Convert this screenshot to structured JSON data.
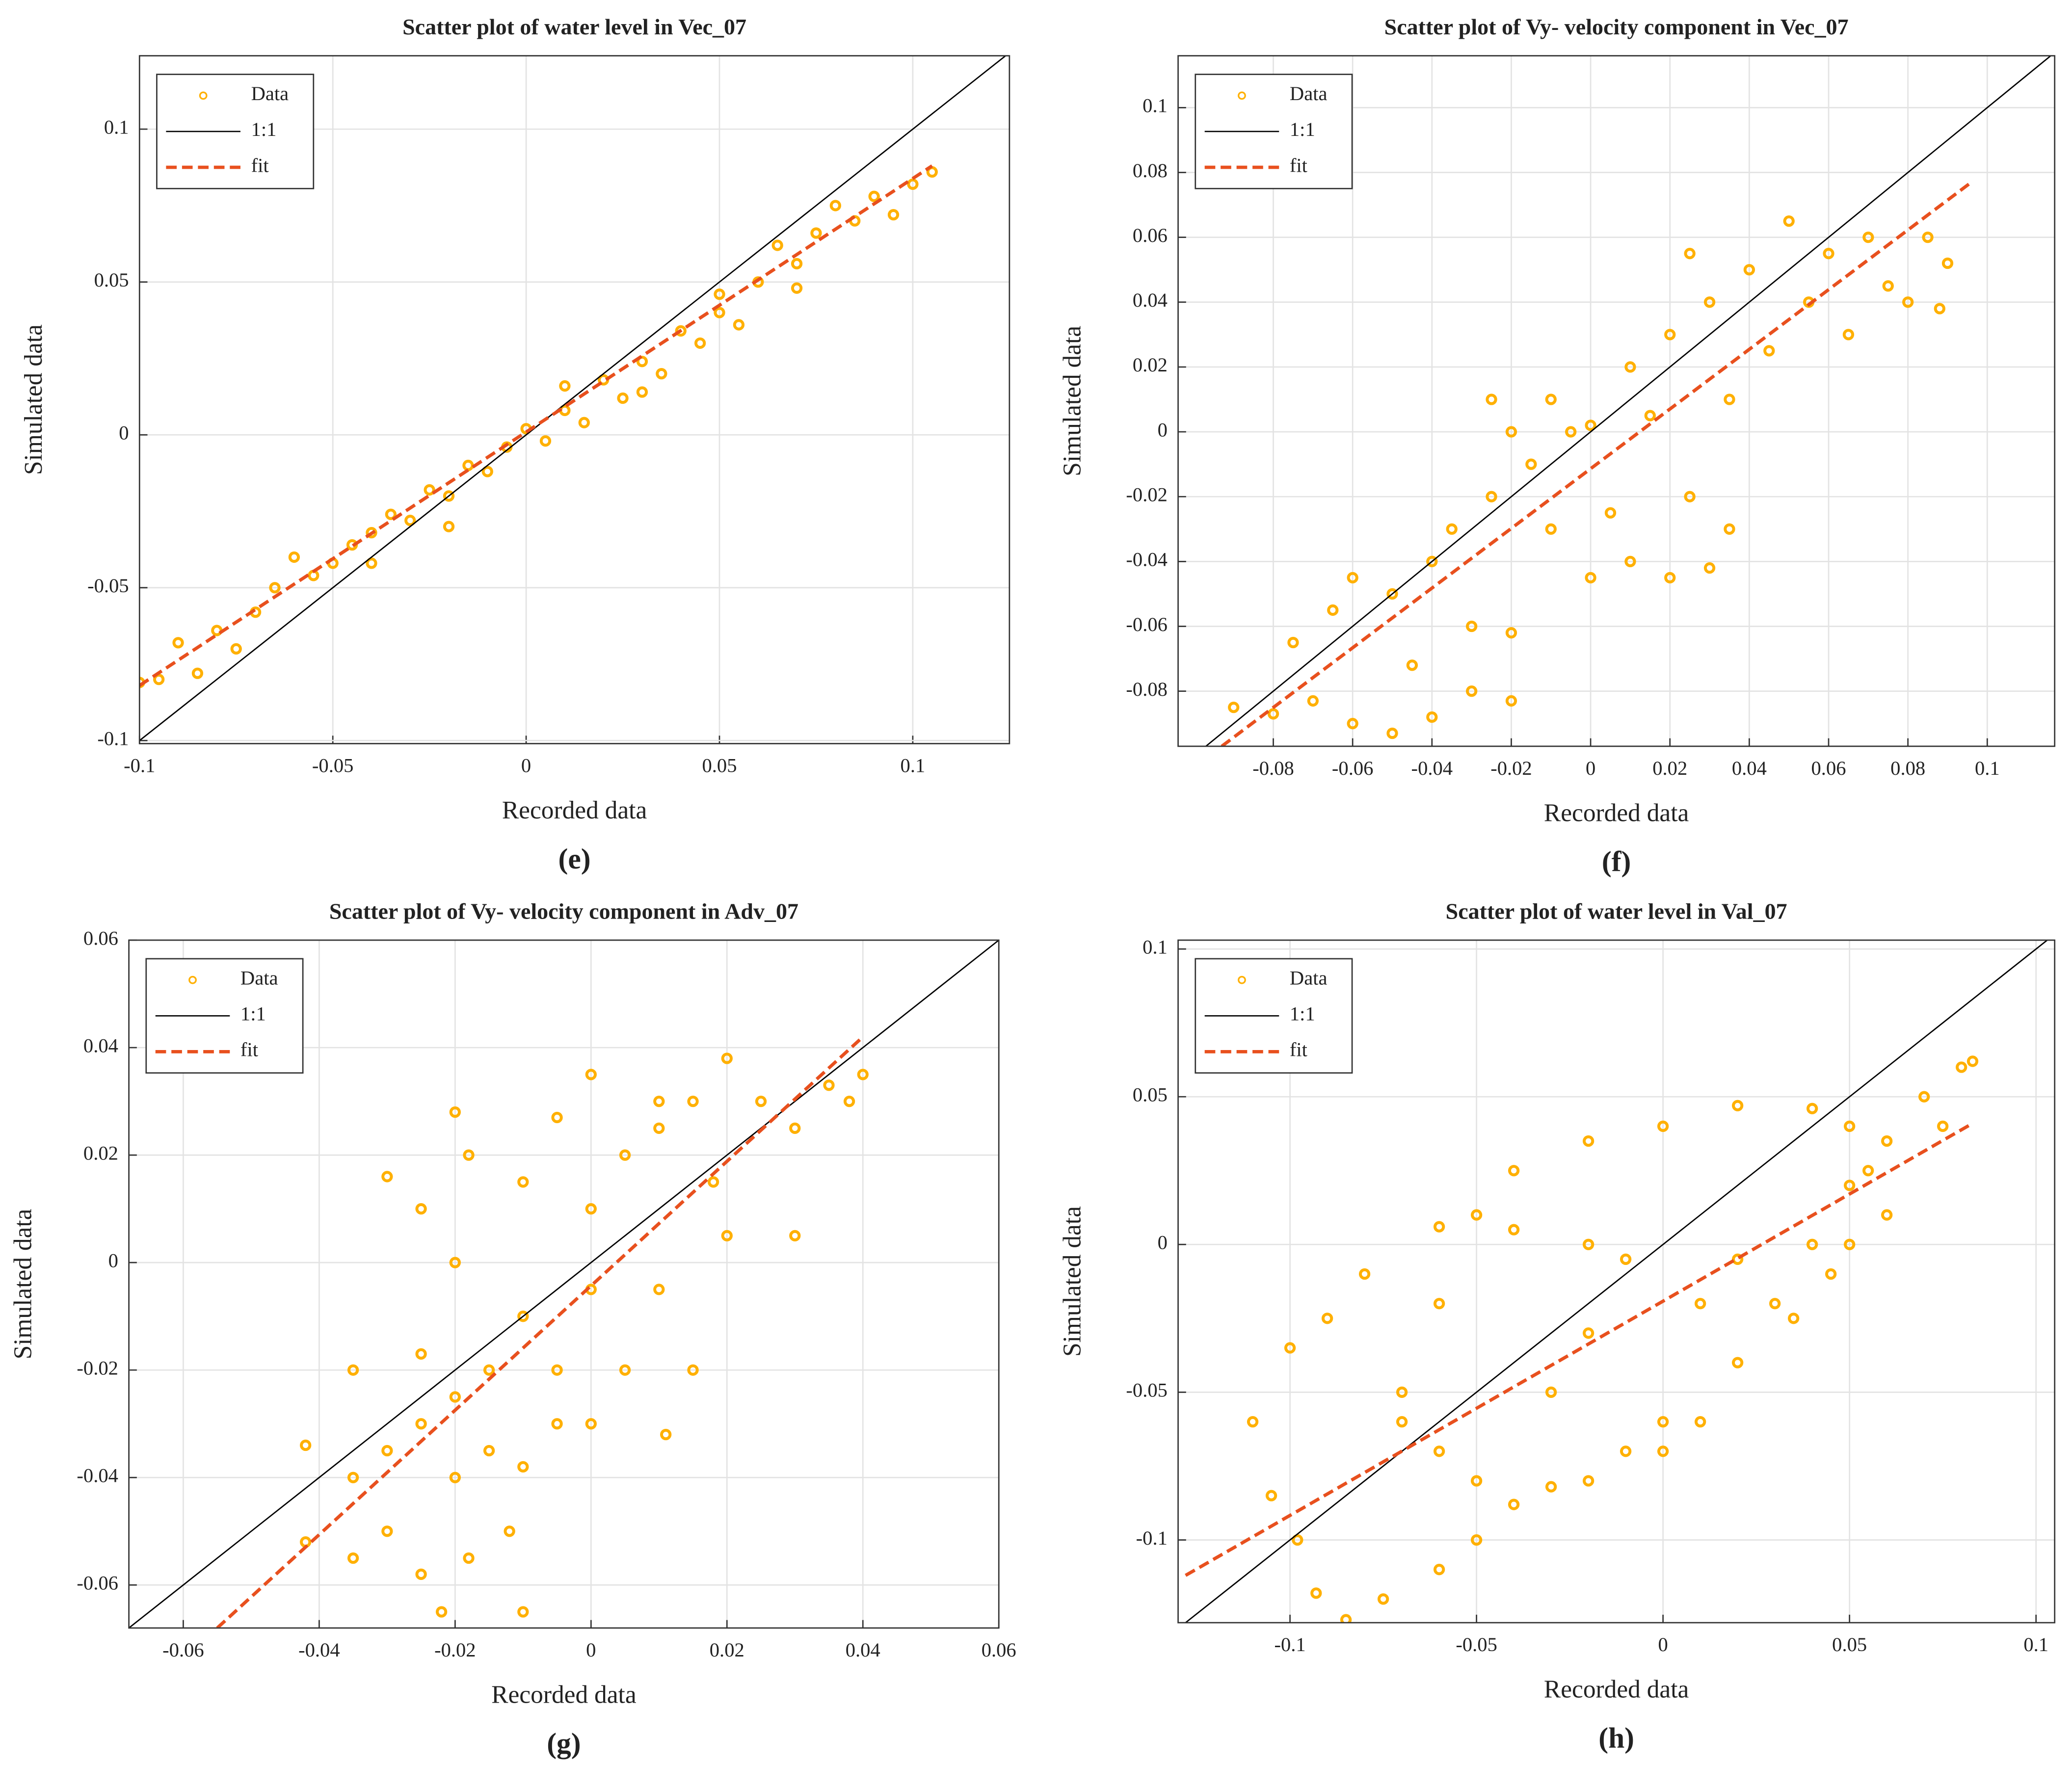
{
  "chart_data": [
    {
      "type": "scatter",
      "title": "Scatter plot of water level in Vec_07",
      "xlabel": "Recorded data",
      "ylabel": "Simulated data",
      "caption": "(e)",
      "xlim": [
        -0.1,
        0.125
      ],
      "ylim": [
        -0.101,
        0.124
      ],
      "xticks": [
        -0.1,
        -0.05,
        0,
        0.05,
        0.1
      ],
      "yticks": [
        -0.1,
        -0.05,
        0,
        0.05,
        0.1
      ],
      "grid": true,
      "legend": "upper left",
      "series": [
        {
          "name": "Data",
          "color": "#ffb000",
          "style": "marker",
          "x": [
            -0.1,
            -0.095,
            -0.085,
            -0.09,
            -0.08,
            -0.075,
            -0.07,
            -0.065,
            -0.06,
            -0.055,
            -0.05,
            -0.045,
            -0.04,
            -0.035,
            -0.03,
            -0.025,
            -0.02,
            -0.015,
            -0.01,
            -0.005,
            0,
            0.005,
            0.01,
            0.015,
            0.02,
            0.025,
            0.03,
            0.035,
            0.04,
            0.045,
            0.05,
            0.055,
            0.06,
            0.065,
            0.07,
            0.075,
            0.08,
            0.085,
            0.09,
            0.095,
            0.1,
            0.105,
            -0.02,
            0.01,
            0.03,
            -0.04,
            0.05,
            0.07
          ],
          "values": [
            -0.081,
            -0.08,
            -0.078,
            -0.068,
            -0.064,
            -0.07,
            -0.058,
            -0.05,
            -0.04,
            -0.046,
            -0.042,
            -0.036,
            -0.032,
            -0.026,
            -0.028,
            -0.018,
            -0.02,
            -0.01,
            -0.012,
            -0.004,
            0.002,
            -0.002,
            0.008,
            0.004,
            0.018,
            0.012,
            0.024,
            0.02,
            0.034,
            0.03,
            0.046,
            0.036,
            0.05,
            0.062,
            0.048,
            0.066,
            0.075,
            0.07,
            0.078,
            0.072,
            0.082,
            0.086,
            -0.03,
            0.016,
            0.014,
            -0.042,
            0.04,
            0.056
          ]
        },
        {
          "name": "1:1",
          "color": "#000000",
          "style": "solid",
          "x": [
            -0.1,
            0.124
          ],
          "values": [
            -0.1,
            0.124
          ]
        },
        {
          "name": "fit",
          "color": "#e8501e",
          "style": "dashed",
          "x": [
            -0.1,
            0.105
          ],
          "values": [
            -0.082,
            0.088
          ]
        }
      ]
    },
    {
      "type": "scatter",
      "title": "Scatter plot of Vy- velocity component in Vec_07",
      "xlabel": "Recorded data",
      "ylabel": "Simulated data",
      "caption": "(f)",
      "xlim": [
        -0.104,
        0.117
      ],
      "ylim": [
        -0.097,
        0.116
      ],
      "xticks": [
        -0.08,
        -0.06,
        -0.04,
        -0.02,
        0,
        0.02,
        0.04,
        0.06,
        0.08,
        0.1
      ],
      "yticks": [
        -0.08,
        -0.06,
        -0.04,
        -0.02,
        0,
        0.02,
        0.04,
        0.06,
        0.08,
        0.1
      ],
      "grid": true,
      "legend": "upper left",
      "series": [
        {
          "name": "Data",
          "color": "#ffb000",
          "style": "marker",
          "x": [
            -0.09,
            -0.08,
            -0.07,
            -0.06,
            -0.05,
            -0.04,
            -0.03,
            -0.02,
            -0.075,
            -0.065,
            -0.06,
            -0.05,
            -0.04,
            -0.03,
            -0.02,
            -0.045,
            -0.035,
            -0.025,
            -0.015,
            -0.02,
            -0.01,
            0,
            0.01,
            0.02,
            0.03,
            -0.025,
            -0.01,
            0,
            0.01,
            0.015,
            0.02,
            0.025,
            0.03,
            0.035,
            0.04,
            0.045,
            0.05,
            0.055,
            0.06,
            0.065,
            0.07,
            0.075,
            0.08,
            0.085,
            0.09,
            0.088,
            0.035,
            0.005,
            -0.005,
            0.025
          ],
          "values": [
            -0.085,
            -0.087,
            -0.083,
            -0.09,
            -0.093,
            -0.088,
            -0.08,
            -0.083,
            -0.065,
            -0.055,
            -0.045,
            -0.05,
            -0.04,
            -0.06,
            -0.062,
            -0.072,
            -0.03,
            -0.02,
            -0.01,
            0,
            -0.03,
            -0.045,
            -0.04,
            -0.045,
            -0.042,
            0.01,
            0.01,
            0.002,
            0.02,
            0.005,
            0.03,
            -0.02,
            0.04,
            0.01,
            0.05,
            0.025,
            0.065,
            0.04,
            0.055,
            0.03,
            0.06,
            0.045,
            0.04,
            0.06,
            0.052,
            0.038,
            -0.03,
            -0.025,
            0,
            0.055
          ]
        },
        {
          "name": "1:1",
          "color": "#000000",
          "style": "solid",
          "x": [
            -0.097,
            0.116
          ],
          "values": [
            -0.097,
            0.116
          ]
        },
        {
          "name": "fit",
          "color": "#e8501e",
          "style": "dashed",
          "x": [
            -0.093,
            0.096
          ],
          "values": [
            -0.097,
            0.077
          ]
        }
      ]
    },
    {
      "type": "scatter",
      "title": "Scatter plot of Vy- velocity component in Adv_07",
      "xlabel": "Recorded data",
      "ylabel": "Simulated data",
      "caption": "(g)",
      "xlim": [
        -0.068,
        0.06
      ],
      "ylim": [
        -0.068,
        0.06
      ],
      "xticks": [
        -0.06,
        -0.04,
        -0.02,
        0,
        0.02,
        0.04,
        0.06
      ],
      "yticks": [
        -0.06,
        -0.04,
        -0.02,
        0,
        0.02,
        0.04,
        0.06
      ],
      "grid": true,
      "legend": "upper left",
      "series": [
        {
          "name": "Data",
          "color": "#ffb000",
          "style": "marker",
          "x": [
            -0.042,
            -0.035,
            -0.03,
            -0.025,
            -0.022,
            -0.018,
            -0.012,
            -0.01,
            -0.035,
            -0.03,
            -0.025,
            -0.02,
            -0.015,
            -0.01,
            -0.005,
            -0.035,
            -0.025,
            -0.02,
            -0.015,
            -0.01,
            -0.005,
            0,
            -0.02,
            -0.025,
            -0.03,
            -0.018,
            -0.01,
            -0.005,
            0,
            0.005,
            0.01,
            0.015,
            0.02,
            0.018,
            0.01,
            0.005,
            0,
            0.015,
            0.02,
            0.025,
            0.03,
            0.035,
            0.04,
            0.038,
            0.03,
            0.01,
            -0.042,
            0.011,
            -0.02,
            0
          ],
          "values": [
            -0.052,
            -0.055,
            -0.05,
            -0.058,
            -0.065,
            -0.055,
            -0.05,
            -0.065,
            -0.04,
            -0.035,
            -0.03,
            -0.04,
            -0.035,
            -0.038,
            -0.03,
            -0.02,
            -0.017,
            -0.025,
            -0.02,
            -0.01,
            -0.02,
            -0.005,
            0,
            0.01,
            0.016,
            0.02,
            0.015,
            0.027,
            0.01,
            0.02,
            0.025,
            0.03,
            0.038,
            0.015,
            -0.005,
            -0.02,
            -0.03,
            -0.02,
            0.005,
            0.03,
            0.025,
            0.033,
            0.035,
            0.03,
            0.005,
            0.03,
            -0.034,
            -0.032,
            0.028,
            0.035
          ]
        },
        {
          "name": "1:1",
          "color": "#000000",
          "style": "solid",
          "x": [
            -0.068,
            0.06
          ],
          "values": [
            -0.068,
            0.06
          ]
        },
        {
          "name": "fit",
          "color": "#e8501e",
          "style": "dashed",
          "x": [
            -0.055,
            0.04
          ],
          "values": [
            -0.068,
            0.042
          ]
        }
      ]
    },
    {
      "type": "scatter",
      "title": "Scatter plot of water level in Val_07",
      "xlabel": "Recorded data",
      "ylabel": "Simulated data",
      "caption": "(h)",
      "xlim": [
        -0.13,
        0.105
      ],
      "ylim": [
        -0.128,
        0.103
      ],
      "xticks": [
        -0.1,
        -0.05,
        0,
        0.05,
        0.1
      ],
      "yticks": [
        -0.1,
        -0.05,
        0,
        0.05,
        0.1
      ],
      "grid": true,
      "legend": "upper left",
      "series": [
        {
          "name": "Data",
          "color": "#ffb000",
          "style": "marker",
          "x": [
            -0.01,
            -0.02,
            -0.04,
            -0.06,
            -0.08,
            -0.09,
            -0.1,
            -0.11,
            -0.105,
            -0.098,
            -0.093,
            -0.085,
            -0.075,
            -0.06,
            -0.05,
            -0.04,
            -0.03,
            -0.02,
            -0.01,
            0,
            -0.05,
            -0.06,
            -0.07,
            -0.07,
            -0.06,
            -0.05,
            -0.04,
            -0.02,
            0,
            0.02,
            0.04,
            0.05,
            0.055,
            0.05,
            0,
            0.01,
            0.02,
            0.03,
            0.04,
            0.05,
            0.06,
            0.07,
            0.08,
            0.083,
            0.075,
            0.06,
            0.045,
            0.035,
            0.02,
            0.01,
            -0.02,
            -0.03
          ],
          "values": [
            -0.005,
            0,
            0.005,
            0.006,
            -0.01,
            -0.025,
            -0.035,
            -0.06,
            -0.085,
            -0.1,
            -0.118,
            -0.127,
            -0.12,
            -0.11,
            -0.1,
            -0.088,
            -0.082,
            -0.08,
            -0.07,
            -0.06,
            -0.08,
            -0.07,
            -0.06,
            -0.05,
            -0.02,
            0.01,
            0.025,
            0.035,
            0.04,
            0.047,
            0.046,
            0.04,
            0.025,
            0,
            -0.07,
            -0.06,
            -0.04,
            -0.02,
            0,
            0.02,
            0.035,
            0.05,
            0.06,
            0.062,
            0.04,
            0.01,
            -0.01,
            -0.025,
            -0.005,
            -0.02,
            -0.03,
            -0.05
          ]
        },
        {
          "name": "1:1",
          "color": "#000000",
          "style": "solid",
          "x": [
            -0.128,
            0.103
          ],
          "values": [
            -0.128,
            0.103
          ]
        },
        {
          "name": "fit",
          "color": "#e8501e",
          "style": "dashed",
          "x": [
            -0.128,
            0.083
          ],
          "values": [
            -0.112,
            0.041
          ]
        }
      ]
    }
  ]
}
